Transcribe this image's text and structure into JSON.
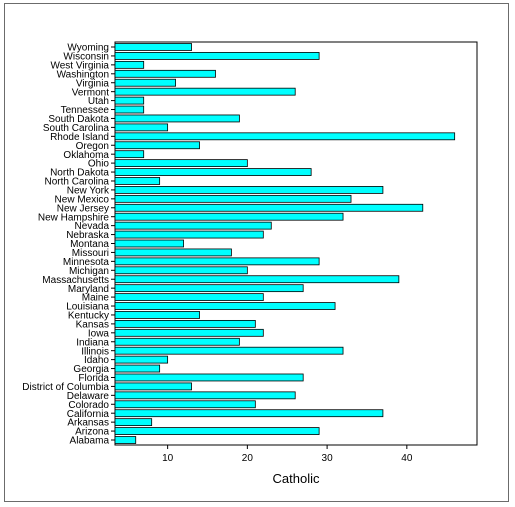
{
  "chart_data": {
    "type": "bar",
    "orientation": "horizontal",
    "title": "",
    "xlabel": "Catholic",
    "ylabel": "",
    "xlim": [
      3.4,
      48.8
    ],
    "xticks": [
      10,
      20,
      30,
      40
    ],
    "grid": false,
    "bar_color": "#00ffff",
    "bar_edge_color": "#000000",
    "categories": [
      "Alabama",
      "Arizona",
      "Arkansas",
      "California",
      "Colorado",
      "Delaware",
      "District of Columbia",
      "Florida",
      "Georgia",
      "Idaho",
      "Illinois",
      "Indiana",
      "Iowa",
      "Kansas",
      "Kentucky",
      "Louisiana",
      "Maine",
      "Maryland",
      "Massachusetts",
      "Michigan",
      "Minnesota",
      "Missouri",
      "Montana",
      "Nebraska",
      "Nevada",
      "New Hampshire",
      "New Jersey",
      "New Mexico",
      "New York",
      "North Carolina",
      "North Dakota",
      "Ohio",
      "Oklahoma",
      "Oregon",
      "Rhode Island",
      "South Carolina",
      "South Dakota",
      "Tennessee",
      "Utah",
      "Vermont",
      "Virginia",
      "Washington",
      "West Virginia",
      "Wisconsin",
      "Wyoming"
    ],
    "values": [
      6,
      29,
      8,
      37,
      21,
      26,
      13,
      27,
      9,
      10,
      32,
      19,
      22,
      21,
      14,
      31,
      22,
      27,
      39,
      20,
      29,
      18,
      12,
      22,
      23,
      32,
      42,
      33,
      37,
      9,
      28,
      20,
      7,
      14,
      46,
      10,
      19,
      7,
      7,
      26,
      11,
      16,
      7,
      29,
      13
    ]
  }
}
